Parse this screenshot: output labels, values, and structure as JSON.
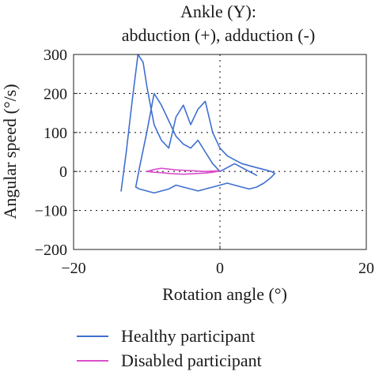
{
  "chart_data": {
    "type": "line",
    "title": [
      "Ankle (Y):",
      "abduction (+), adduction (-)"
    ],
    "xlabel": "Rotation angle (°)",
    "ylabel": "Angular speed (°/s)",
    "xlim": [
      -20,
      20
    ],
    "ylim": [
      -200,
      300
    ],
    "x_ticks": [
      -20,
      0,
      20
    ],
    "x_tick_labels": [
      "−20",
      "0",
      "20"
    ],
    "y_ticks": [
      -200,
      -100,
      0,
      100,
      200,
      300
    ],
    "y_tick_labels": [
      "−200",
      "−100",
      "0",
      "100",
      "200",
      "300"
    ],
    "grid": true,
    "legend_position": "bottom",
    "series": [
      {
        "name": "Healthy participant",
        "color": "#3f6fd1",
        "x": [
          -13.5,
          -12.8,
          -12.0,
          -11.2,
          -10.5,
          -10.0,
          -9.5,
          -9.0,
          -8.0,
          -7.0,
          -6.0,
          -5.0,
          -4.0,
          -3.0,
          -2.0,
          -1.0,
          0.0,
          1.0,
          2.0,
          3.0,
          4.0,
          5.0,
          6.0,
          7.0,
          7.5,
          7.0,
          6.0,
          5.0,
          4.0,
          3.0,
          2.0,
          1.0,
          0.0,
          -1.0,
          -2.0,
          -3.0,
          -4.0,
          -5.0,
          -6.0,
          -7.0,
          -8.0,
          -9.0,
          -10.0,
          -11.0,
          -11.5,
          -11.0,
          -10.0,
          -9.0,
          -8.0,
          -7.0,
          -6.0,
          -5.0,
          -4.0,
          -3.0,
          -2.0,
          -1.0,
          0.0,
          1.0,
          2.0,
          3.0,
          4.0,
          5.0
        ],
        "y": [
          -50,
          50,
          180,
          300,
          280,
          220,
          170,
          120,
          80,
          60,
          140,
          170,
          120,
          160,
          180,
          100,
          60,
          40,
          30,
          20,
          15,
          10,
          5,
          0,
          -5,
          -15,
          -30,
          -40,
          -45,
          -40,
          -35,
          -30,
          -35,
          -40,
          -45,
          -50,
          -45,
          -40,
          -35,
          -45,
          -50,
          -55,
          -50,
          -45,
          -40,
          10,
          100,
          200,
          170,
          130,
          90,
          70,
          60,
          80,
          50,
          20,
          0,
          10,
          20,
          10,
          0,
          -10
        ]
      },
      {
        "name": "Disabled participant",
        "color": "#d94fcb",
        "x": [
          -10.0,
          -9.0,
          -8.0,
          -7.0,
          -6.0,
          -5.0,
          -4.0,
          -3.0,
          -2.0,
          -1.0,
          0.0,
          -1.0,
          -2.0,
          -3.0,
          -4.0,
          -5.0,
          -6.0,
          -7.0,
          -8.0,
          -9.0,
          -10.0
        ],
        "y": [
          0,
          5,
          8,
          6,
          4,
          3,
          2,
          1,
          0,
          1,
          2,
          -2,
          -4,
          -5,
          -6,
          -7,
          -6,
          -5,
          -3,
          -2,
          0
        ]
      }
    ]
  }
}
